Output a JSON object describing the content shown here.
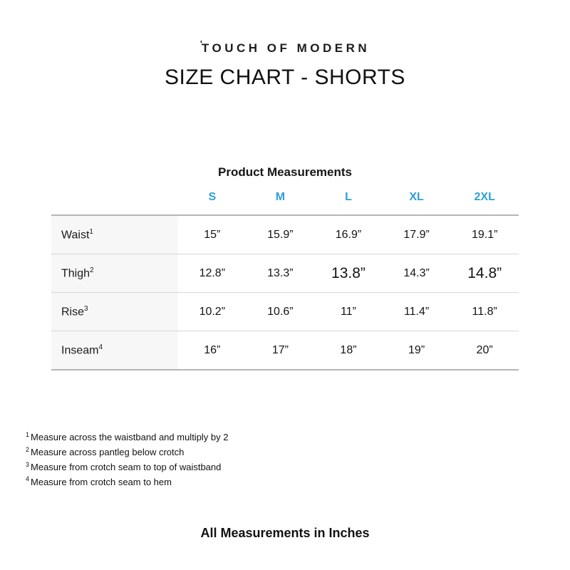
{
  "header": {
    "logo_mark": "'",
    "logo_text": "TOUCH OF MODERN",
    "title": "SIZE CHART - SHORTS"
  },
  "table": {
    "caption": "Product Measurements",
    "accent_color": "#2E9FD9",
    "size_headers": [
      "S",
      "M",
      "L",
      "XL",
      "2XL"
    ],
    "rows": [
      {
        "label": "Waist",
        "footnote_ref": "1",
        "values": [
          "15”",
          "15.9”",
          "16.9”",
          "17.9”",
          "19.1”"
        ]
      },
      {
        "label": "Thigh",
        "footnote_ref": "2",
        "values": [
          "12.8”",
          "13.3”",
          "13.8”",
          "14.3”",
          "14.8”"
        ]
      },
      {
        "label": "Rise",
        "footnote_ref": "3",
        "values": [
          "10.2”",
          "10.6”",
          "11”",
          "11.4”",
          "11.8”"
        ]
      },
      {
        "label": "Inseam",
        "footnote_ref": "4",
        "values": [
          "16”",
          "17”",
          "18”",
          "19”",
          "20”"
        ]
      }
    ]
  },
  "footnotes": [
    {
      "ref": "1",
      "text": "Measure across the waistband and multiply by 2"
    },
    {
      "ref": "2",
      "text": "Measure across pantleg below crotch"
    },
    {
      "ref": "3",
      "text": "Measure from crotch seam to top of waistband"
    },
    {
      "ref": "4",
      "text": "Measure from crotch seam to hem"
    }
  ],
  "footer": {
    "note": "All Measurements in Inches"
  }
}
